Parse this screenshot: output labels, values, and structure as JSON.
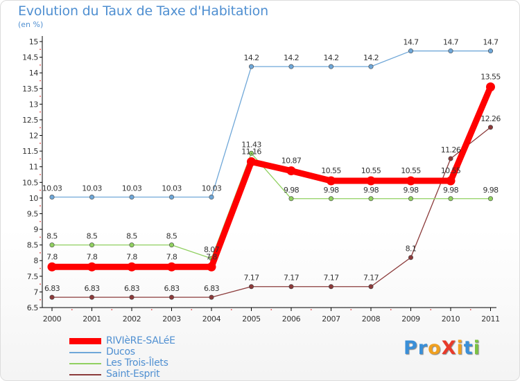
{
  "title": "Evolution du Taux de Taxe d'Habitation",
  "subtitle": "(en %)",
  "logo": {
    "text": "ProXiti",
    "letters": [
      {
        "ch": "P",
        "color": "#3a8fd8"
      },
      {
        "ch": "r",
        "color": "#3a8fd8"
      },
      {
        "ch": "o",
        "color": "#f0a020"
      },
      {
        "ch": "X",
        "color": "#e83a2a"
      },
      {
        "ch": "i",
        "color": "#f0a020"
      },
      {
        "ch": "t",
        "color": "#3a8fd8"
      },
      {
        "ch": "i",
        "color": "#7cc242"
      }
    ]
  },
  "chart_data": {
    "type": "line",
    "title": "Evolution du Taux de Taxe d'Habitation",
    "ylabel": "(en %)",
    "xlabel": "",
    "x": [
      "2000",
      "2001",
      "2002",
      "2003",
      "2004",
      "2005",
      "2006",
      "2007",
      "2008",
      "2009",
      "2010",
      "2011"
    ],
    "ylim": [
      6.5,
      15
    ],
    "yticks": [
      "6.5",
      "7",
      "7.5",
      "8",
      "8.5",
      "9",
      "9.5",
      "10",
      "10.5",
      "11",
      "11.5",
      "12",
      "12.5",
      "13",
      "13.5",
      "14",
      "14.5",
      "15"
    ],
    "grid": false,
    "legend_position": "bottom-left",
    "series": [
      {
        "name": "RIVIèRE-SALéE",
        "color": "#ff0000",
        "emphasis": "thick",
        "values": [
          7.8,
          7.8,
          7.8,
          7.8,
          7.8,
          11.16,
          10.87,
          10.55,
          10.55,
          10.55,
          10.55,
          13.55
        ],
        "labels": [
          "7.8",
          "7.8",
          "7.8",
          "7.8",
          "7.8",
          "11.16",
          "10.87",
          "10.55",
          "10.55",
          "10.55",
          "10.55",
          "13.55"
        ]
      },
      {
        "name": "Ducos",
        "color": "#6fa7d8",
        "values": [
          10.03,
          10.03,
          10.03,
          10.03,
          10.03,
          14.2,
          14.2,
          14.2,
          14.2,
          14.7,
          14.7,
          14.7
        ],
        "labels": [
          "10.03",
          "10.03",
          "10.03",
          "10.03",
          "10.03",
          "14.2",
          "14.2",
          "14.2",
          "14.2",
          "14.7",
          "14.7",
          "14.7"
        ]
      },
      {
        "name": "Les Trois-Îlets",
        "color": "#90d060",
        "values": [
          8.5,
          8.5,
          8.5,
          8.5,
          8.07,
          11.43,
          9.98,
          9.98,
          9.98,
          9.98,
          9.98,
          9.98
        ],
        "labels": [
          "8.5",
          "8.5",
          "8.5",
          "8.5",
          "8.07",
          "11.43",
          "9.98",
          "9.98",
          "9.98",
          "9.98",
          "9.98",
          "9.98"
        ]
      },
      {
        "name": "Saint-Esprit",
        "color": "#8b3a3a",
        "values": [
          6.83,
          6.83,
          6.83,
          6.83,
          6.83,
          7.17,
          7.17,
          7.17,
          7.17,
          8.1,
          11.26,
          12.26
        ],
        "labels": [
          "6.83",
          "6.83",
          "6.83",
          "6.83",
          "6.83",
          "7.17",
          "7.17",
          "7.17",
          "7.17",
          "8.1",
          "11.26",
          "12.26"
        ]
      }
    ]
  }
}
